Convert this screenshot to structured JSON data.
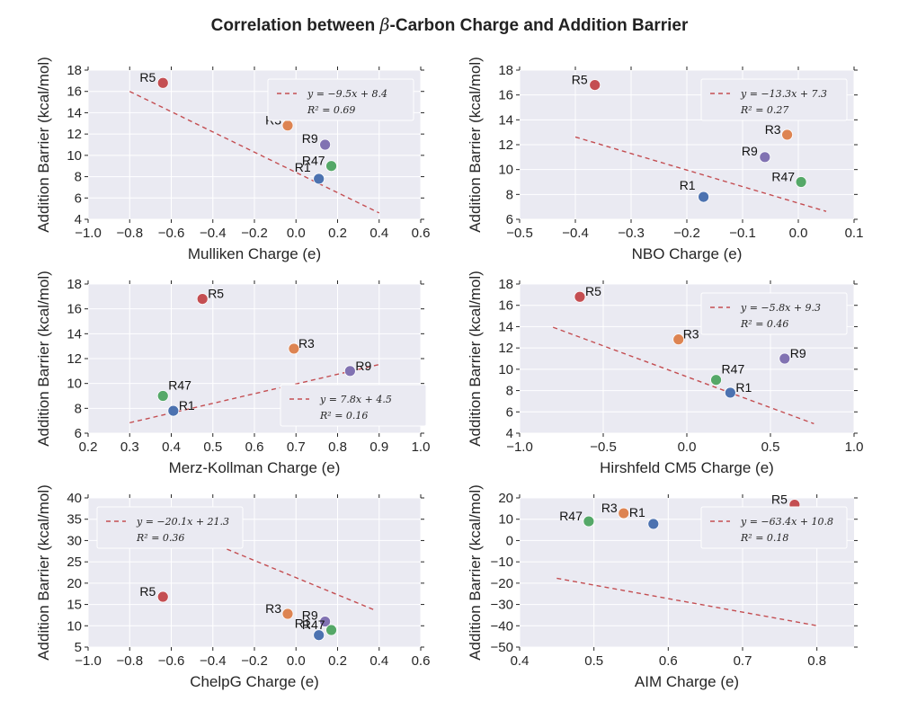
{
  "title_prefix": "Correlation between ",
  "title_beta": "β",
  "title_suffix": "-Carbon Charge and Addition Barrier",
  "point_colors": {
    "R1": "#4c72b0",
    "R3": "#dd8452",
    "R5": "#c44e52",
    "R9": "#8172b2",
    "R47": "#55a868"
  },
  "fit_color": "#c44e52",
  "chart_data": [
    {
      "type": "scatter",
      "xlabel": "Mulliken Charge (e)",
      "ylabel": "Addition Barrier (kcal/mol)",
      "xlim": [
        -1.0,
        0.6
      ],
      "ylim": [
        4,
        18
      ],
      "xticks": [
        -1.0,
        -0.8,
        -0.6,
        -0.4,
        -0.2,
        0.0,
        0.2,
        0.4,
        0.6
      ],
      "yticks": [
        4,
        6,
        8,
        10,
        12,
        14,
        16,
        18
      ],
      "points": [
        {
          "label": "R1",
          "x": 0.11,
          "y": 7.8
        },
        {
          "label": "R3",
          "x": -0.04,
          "y": 12.8
        },
        {
          "label": "R5",
          "x": -0.64,
          "y": 16.8
        },
        {
          "label": "R9",
          "x": 0.14,
          "y": 11.0
        },
        {
          "label": "R47",
          "x": 0.17,
          "y": 9.0
        }
      ],
      "fit": {
        "slope": -9.5,
        "intercept": 8.4,
        "x_range": [
          -0.8,
          0.4
        ]
      },
      "legend": {
        "equation": "y = −9.5x + 8.4",
        "r2": "R² = 0.69",
        "position": "upper right"
      }
    },
    {
      "type": "scatter",
      "xlabel": "NBO Charge (e)",
      "ylabel": "Addition Barrier (kcal/mol)",
      "xlim": [
        -0.5,
        0.1
      ],
      "ylim": [
        6,
        18
      ],
      "xticks": [
        -0.5,
        -0.4,
        -0.3,
        -0.2,
        -0.1,
        0.0,
        0.1
      ],
      "yticks": [
        6,
        8,
        10,
        12,
        14,
        16,
        18
      ],
      "points": [
        {
          "label": "R1",
          "x": -0.17,
          "y": 7.8
        },
        {
          "label": "R3",
          "x": -0.02,
          "y": 12.8
        },
        {
          "label": "R5",
          "x": -0.365,
          "y": 16.8
        },
        {
          "label": "R9",
          "x": -0.06,
          "y": 11.0
        },
        {
          "label": "R47",
          "x": 0.005,
          "y": 9.0
        }
      ],
      "fit": {
        "slope": -13.3,
        "intercept": 7.3,
        "x_range": [
          -0.4,
          0.05
        ]
      },
      "legend": {
        "equation": "y = −13.3x + 7.3",
        "r2": "R² = 0.27",
        "position": "upper right"
      }
    },
    {
      "type": "scatter",
      "xlabel": "Merz-Kollman Charge (e)",
      "ylabel": "Addition Barrier (kcal/mol)",
      "xlim": [
        0.2,
        1.0
      ],
      "ylim": [
        6,
        18
      ],
      "xticks": [
        0.2,
        0.3,
        0.4,
        0.5,
        0.6,
        0.7,
        0.8,
        0.9,
        1.0
      ],
      "yticks": [
        6,
        8,
        10,
        12,
        14,
        16,
        18
      ],
      "points": [
        {
          "label": "R1",
          "x": 0.405,
          "y": 7.8
        },
        {
          "label": "R3",
          "x": 0.695,
          "y": 12.8
        },
        {
          "label": "R5",
          "x": 0.475,
          "y": 16.8
        },
        {
          "label": "R9",
          "x": 0.83,
          "y": 11.0
        },
        {
          "label": "R47",
          "x": 0.38,
          "y": 9.0
        }
      ],
      "fit": {
        "slope": 7.8,
        "intercept": 4.5,
        "x_range": [
          0.3,
          0.9
        ]
      },
      "legend": {
        "equation": "y = 7.8x + 4.5",
        "r2": "R² = 0.16",
        "position": "lower right"
      }
    },
    {
      "type": "scatter",
      "xlabel": "Hirshfeld CM5 Charge (e)",
      "ylabel": "Addition Barrier (kcal/mol)",
      "xlim": [
        -1.0,
        1.0
      ],
      "ylim": [
        4,
        18
      ],
      "xticks": [
        -1.0,
        -0.5,
        0.0,
        0.5,
        1.0
      ],
      "xtick_labels": [
        "−1.0",
        "−0.5",
        "0.0",
        "0.5",
        "1.0"
      ],
      "yticks": [
        4,
        6,
        8,
        10,
        12,
        14,
        16,
        18
      ],
      "points": [
        {
          "label": "R1",
          "x": 0.26,
          "y": 7.8
        },
        {
          "label": "R3",
          "x": -0.05,
          "y": 12.8
        },
        {
          "label": "R5",
          "x": -0.64,
          "y": 16.8
        },
        {
          "label": "R9",
          "x": 0.585,
          "y": 11.0
        },
        {
          "label": "R47",
          "x": 0.175,
          "y": 9.0
        }
      ],
      "fit": {
        "slope": -5.8,
        "intercept": 9.3,
        "x_range": [
          -0.8,
          0.76
        ]
      },
      "legend": {
        "equation": "y = −5.8x + 9.3",
        "r2": "R² = 0.46",
        "position": "upper right"
      }
    },
    {
      "type": "scatter",
      "xlabel": "ChelpG Charge (e)",
      "ylabel": "Addition Barrier (kcal/mol)",
      "xlim": [
        -1.0,
        0.6
      ],
      "ylim": [
        5,
        40
      ],
      "xticks": [
        -1.0,
        -0.8,
        -0.6,
        -0.4,
        -0.2,
        0.0,
        0.2,
        0.4,
        0.6
      ],
      "yticks": [
        5,
        10,
        15,
        20,
        25,
        30,
        35,
        40
      ],
      "points": [
        {
          "label": "R1",
          "x": 0.11,
          "y": 7.8
        },
        {
          "label": "R3",
          "x": -0.04,
          "y": 12.8
        },
        {
          "label": "R5",
          "x": -0.64,
          "y": 16.8
        },
        {
          "label": "R9",
          "x": 0.14,
          "y": 11.0
        },
        {
          "label": "R47",
          "x": 0.17,
          "y": 9.0
        }
      ],
      "fit": {
        "slope": -20.1,
        "intercept": 21.3,
        "x_range": [
          -0.8,
          0.38
        ]
      },
      "legend": {
        "equation": "y = −20.1x + 21.3",
        "r2": "R² = 0.36",
        "position": "upper left"
      }
    },
    {
      "type": "scatter",
      "xlabel": "AIM Charge (e)",
      "ylabel": "Addition Barrier (kcal/mol)",
      "xlim": [
        0.4,
        0.85
      ],
      "ylim": [
        -50,
        20
      ],
      "xticks": [
        0.4,
        0.5,
        0.6,
        0.7,
        0.8
      ],
      "yticks": [
        -50,
        -40,
        -30,
        -20,
        -10,
        0,
        10,
        20
      ],
      "points": [
        {
          "label": "R1",
          "x": 0.58,
          "y": 7.8
        },
        {
          "label": "R3",
          "x": 0.54,
          "y": 12.8
        },
        {
          "label": "R5",
          "x": 0.77,
          "y": 16.8
        },
        {
          "label": "R9",
          "x": 0.78,
          "y": 11.0
        },
        {
          "label": "R47",
          "x": 0.493,
          "y": 9.0
        }
      ],
      "fit": {
        "slope": -63.4,
        "intercept": 10.8,
        "x_range": [
          0.45,
          0.8
        ]
      },
      "legend": {
        "equation": "y = −63.4x + 10.8",
        "r2": "R² = 0.18",
        "position": "upper right"
      }
    }
  ]
}
